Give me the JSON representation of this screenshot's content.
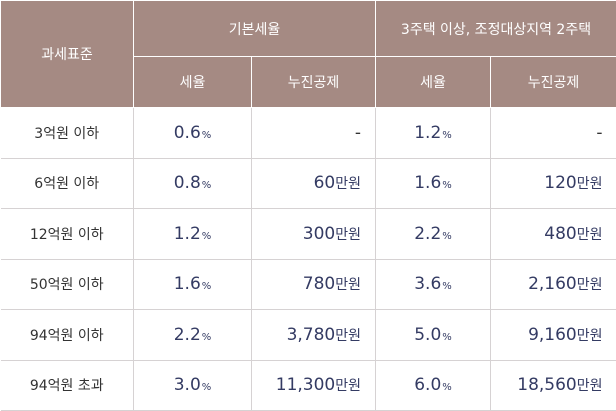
{
  "header": {
    "base_label": "과세표준",
    "basic_group": "기본세율",
    "multi_group": "3주택 이상, 조정대상지역 2주택",
    "rate_label": "세율",
    "deduction_label": "누진공제"
  },
  "rows": [
    {
      "base": "3억원 이하",
      "basic_rate": "0.6",
      "basic_ded": "",
      "basic_ded_unit": "",
      "basic_ded_dash": "-",
      "multi_rate": "1.2",
      "multi_ded": "",
      "multi_ded_unit": "",
      "multi_ded_dash": "-"
    },
    {
      "base": "6억원 이하",
      "basic_rate": "0.8",
      "basic_ded": "60",
      "basic_ded_unit": "만원",
      "basic_ded_dash": "",
      "multi_rate": "1.6",
      "multi_ded": "120",
      "multi_ded_unit": "만원",
      "multi_ded_dash": ""
    },
    {
      "base": "12억원 이하",
      "basic_rate": "1.2",
      "basic_ded": "300",
      "basic_ded_unit": "만원",
      "basic_ded_dash": "",
      "multi_rate": "2.2",
      "multi_ded": "480",
      "multi_ded_unit": "만원",
      "multi_ded_dash": ""
    },
    {
      "base": "50억원 이하",
      "basic_rate": "1.6",
      "basic_ded": "780",
      "basic_ded_unit": "만원",
      "basic_ded_dash": "",
      "multi_rate": "3.6",
      "multi_ded": "2,160",
      "multi_ded_unit": "만원",
      "multi_ded_dash": ""
    },
    {
      "base": "94억원 이하",
      "basic_rate": "2.2",
      "basic_ded": "3,780",
      "basic_ded_unit": "만원",
      "basic_ded_dash": "",
      "multi_rate": "5.0",
      "multi_ded": "9,160",
      "multi_ded_unit": "만원",
      "multi_ded_dash": ""
    },
    {
      "base": "94억원 초과",
      "basic_rate": "3.0",
      "basic_ded": "11,300",
      "basic_ded_unit": "만원",
      "basic_ded_dash": "",
      "multi_rate": "6.0",
      "multi_ded": "18,560",
      "multi_ded_unit": "만원",
      "multi_ded_dash": ""
    }
  ],
  "pct_symbol": "%",
  "colors": {
    "header_bg": "#a58a83",
    "value_text": "#343b63",
    "row_border": "#d6d2d3"
  }
}
